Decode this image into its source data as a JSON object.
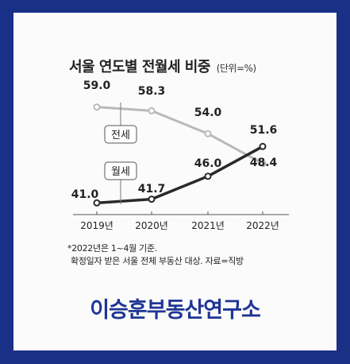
{
  "chart_data": {
    "type": "line",
    "title": "서울 연도별 전월세 비중",
    "unit_label": "(단위=%)",
    "categories": [
      "2019년",
      "2020년",
      "2021년",
      "2022년"
    ],
    "series": [
      {
        "name": "전세",
        "values": [
          59.0,
          58.3,
          54.0,
          48.4
        ],
        "value_labels": [
          "59.0",
          "58.3",
          "54.0",
          "48.4"
        ],
        "color": "#b9b9b9"
      },
      {
        "name": "월세",
        "values": [
          41.0,
          41.7,
          46.0,
          51.6
        ],
        "value_labels": [
          "41.0",
          "41.7",
          "46.0",
          "51.6"
        ],
        "color": "#2a2a2a"
      }
    ],
    "ylim": [
      40,
      60
    ],
    "grid": false,
    "legend": "inline labels"
  },
  "notes": {
    "line1": "*2022년은 1~4월 기준.",
    "line2": "확정일자 받은 서울 전체 부동산 대상. 자료=직방"
  },
  "brand": {
    "name": "이승훈부동산연구소",
    "color": "#1f3595"
  },
  "colors": {
    "border": "#1a2f86",
    "background": "#fbfbfb"
  }
}
